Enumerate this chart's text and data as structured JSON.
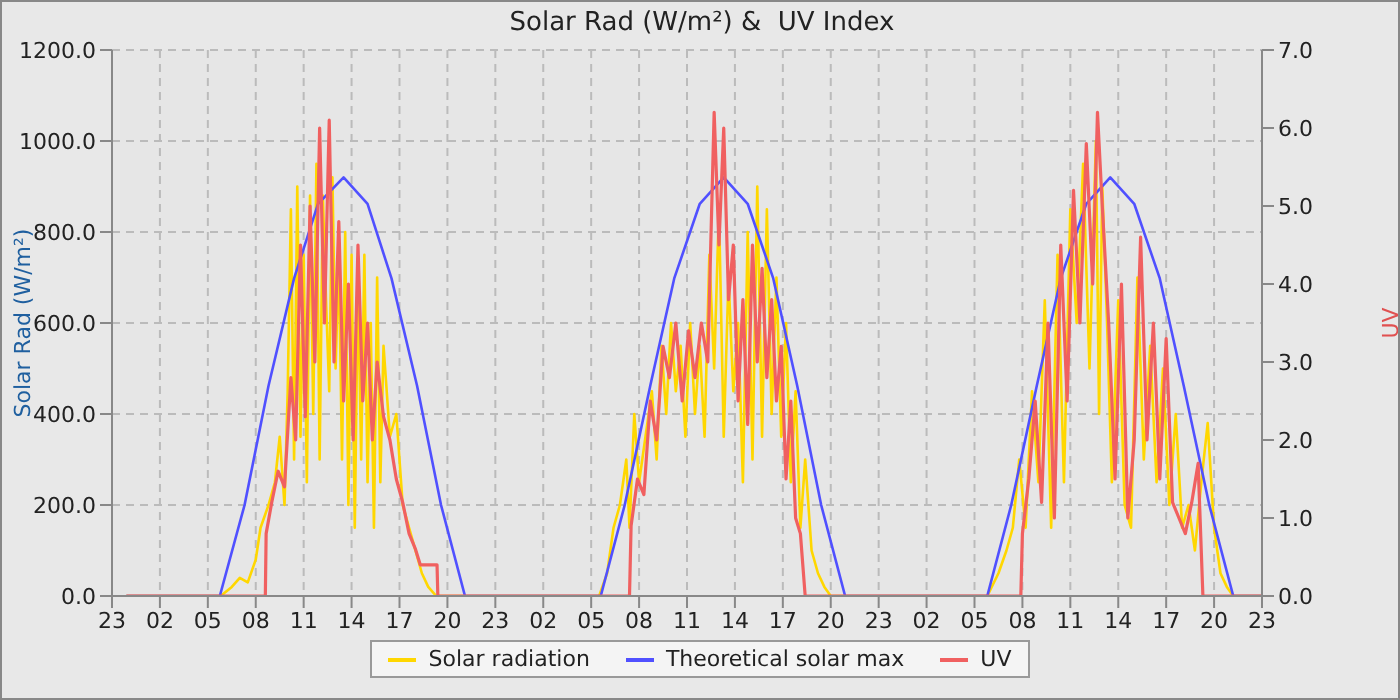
{
  "chart_data": {
    "type": "line",
    "title": "Solar Rad (W/m²) &  UV Index",
    "ylabel": "Solar Rad (W/m²)",
    "y2label": "UV",
    "xlim": [
      "--01-01T23:00",
      "--01-04T23:00"
    ],
    "xticks": [
      {
        "value": "--01-01T23:00",
        "label": "23"
      },
      {
        "value": "--01-02T02:00",
        "label": "02"
      },
      {
        "value": "--01-02T05:00",
        "label": "05"
      },
      {
        "value": "--01-02T08:00",
        "label": "08"
      },
      {
        "value": "--01-02T11:00",
        "label": "11"
      },
      {
        "value": "--01-02T14:00",
        "label": "14"
      },
      {
        "value": "--01-02T17:00",
        "label": "17"
      },
      {
        "value": "--01-02T20:00",
        "label": "20"
      },
      {
        "value": "--01-02T23:00",
        "label": "23"
      },
      {
        "value": "--01-03T02:00",
        "label": "02"
      },
      {
        "value": "--01-03T05:00",
        "label": "05"
      },
      {
        "value": "--01-03T08:00",
        "label": "08"
      },
      {
        "value": "--01-03T11:00",
        "label": "11"
      },
      {
        "value": "--01-03T14:00",
        "label": "14"
      },
      {
        "value": "--01-03T17:00",
        "label": "17"
      },
      {
        "value": "--01-03T20:00",
        "label": "20"
      },
      {
        "value": "--01-03T23:00",
        "label": "23"
      },
      {
        "value": "--01-04T02:00",
        "label": "02"
      },
      {
        "value": "--01-04T05:00",
        "label": "05"
      },
      {
        "value": "--01-04T08:00",
        "label": "08"
      },
      {
        "value": "--01-04T11:00",
        "label": "11"
      },
      {
        "value": "--01-04T14:00",
        "label": "14"
      },
      {
        "value": "--01-04T17:00",
        "label": "17"
      },
      {
        "value": "--01-04T20:00",
        "label": "20"
      },
      {
        "value": "--01-04T23:00",
        "label": "23"
      }
    ],
    "ylim": [
      0,
      1200
    ],
    "yticks": [
      {
        "value": 0,
        "label": "0.0"
      },
      {
        "value": 200,
        "label": "200.0"
      },
      {
        "value": 400,
        "label": "400.0"
      },
      {
        "value": 600,
        "label": "600.0"
      },
      {
        "value": 800,
        "label": "800.0"
      },
      {
        "value": 1000,
        "label": "1000.0"
      },
      {
        "value": 1200,
        "label": "1200.0"
      }
    ],
    "y2lim": [
      0,
      7
    ],
    "y2ticks": [
      {
        "value": 0,
        "label": "0.0"
      },
      {
        "value": 1,
        "label": "1.0"
      },
      {
        "value": 2,
        "label": "2.0"
      },
      {
        "value": 3,
        "label": "3.0"
      },
      {
        "value": 4,
        "label": "4.0"
      },
      {
        "value": 5,
        "label": "5.0"
      },
      {
        "value": 6,
        "label": "6.0"
      },
      {
        "value": 7,
        "label": "7.0"
      }
    ],
    "grid": true,
    "legend": "bottom",
    "marker": "none",
    "line_style": "solid",
    "series": [
      {
        "name": "Solar radiation",
        "color": "#ffd700",
        "x": [
          "--01-01T23:54",
          "--01-02T05:48",
          "--01-02T06:30",
          "--01-02T07:00",
          "--01-02T07:30",
          "--01-02T08:00",
          "--01-02T08:18",
          "--01-02T08:48",
          "--01-02T09:12",
          "--01-02T09:30",
          "--01-02T09:48",
          "--01-02T10:00",
          "--01-02T10:12",
          "--01-02T10:24",
          "--01-02T10:36",
          "--01-02T10:48",
          "--01-02T11:00",
          "--01-02T11:12",
          "--01-02T11:24",
          "--01-02T11:36",
          "--01-02T11:48",
          "--01-02T12:00",
          "--01-02T12:12",
          "--01-02T12:24",
          "--01-02T12:36",
          "--01-02T12:48",
          "--01-02T13:00",
          "--01-02T13:12",
          "--01-02T13:24",
          "--01-02T13:36",
          "--01-02T13:48",
          "--01-02T14:00",
          "--01-02T14:12",
          "--01-02T14:24",
          "--01-02T14:36",
          "--01-02T14:48",
          "--01-02T15:00",
          "--01-02T15:12",
          "--01-02T15:24",
          "--01-02T15:36",
          "--01-02T15:48",
          "--01-02T16:00",
          "--01-02T16:24",
          "--01-02T16:48",
          "--01-02T17:12",
          "--01-02T17:36",
          "--01-02T18:00",
          "--01-02T18:24",
          "--01-02T18:48",
          "--01-02T19:18",
          "--01-03T05:30",
          "--01-03T06:00",
          "--01-03T06:24",
          "--01-03T06:48",
          "--01-03T07:12",
          "--01-03T07:24",
          "--01-03T07:42",
          "--01-03T08:00",
          "--01-03T08:24",
          "--01-03T08:48",
          "--01-03T09:06",
          "--01-03T09:24",
          "--01-03T09:42",
          "--01-03T10:00",
          "--01-03T10:18",
          "--01-03T10:36",
          "--01-03T10:54",
          "--01-03T11:12",
          "--01-03T11:30",
          "--01-03T11:48",
          "--01-03T12:06",
          "--01-03T12:24",
          "--01-03T12:42",
          "--01-03T13:00",
          "--01-03T13:18",
          "--01-03T13:36",
          "--01-03T13:54",
          "--01-03T14:12",
          "--01-03T14:30",
          "--01-03T14:48",
          "--01-03T15:06",
          "--01-03T15:24",
          "--01-03T15:42",
          "--01-03T16:00",
          "--01-03T16:18",
          "--01-03T16:36",
          "--01-03T16:54",
          "--01-03T17:12",
          "--01-03T17:30",
          "--01-03T17:48",
          "--01-03T18:06",
          "--01-03T18:24",
          "--01-03T18:48",
          "--01-03T19:12",
          "--01-03T19:36",
          "--01-03T20:00",
          "--01-04T05:48",
          "--01-04T06:30",
          "--01-04T07:00",
          "--01-04T07:24",
          "--01-04T07:48",
          "--01-04T08:12",
          "--01-04T08:36",
          "--01-04T09:00",
          "--01-04T09:24",
          "--01-04T09:48",
          "--01-04T10:12",
          "--01-04T10:36",
          "--01-04T11:00",
          "--01-04T11:24",
          "--01-04T11:48",
          "--01-04T12:12",
          "--01-04T12:36",
          "--01-04T12:48",
          "--01-04T13:00",
          "--01-04T13:18",
          "--01-04T13:36",
          "--01-04T14:00",
          "--01-04T14:24",
          "--01-04T14:48",
          "--01-04T15:12",
          "--01-04T15:36",
          "--01-04T16:00",
          "--01-04T16:24",
          "--01-04T16:48",
          "--01-04T17:12",
          "--01-04T17:36",
          "--01-04T18:00",
          "--01-04T18:24",
          "--01-04T18:48",
          "--01-04T19:12",
          "--01-04T19:36",
          "--01-04T20:00",
          "--01-04T20:24",
          "--01-04T20:48",
          "--01-04T21:12",
          "--01-04T23:00"
        ],
        "values": [
          0,
          0,
          20,
          40,
          30,
          80,
          150,
          200,
          250,
          350,
          200,
          450,
          850,
          300,
          900,
          350,
          750,
          250,
          880,
          400,
          950,
          300,
          880,
          650,
          450,
          920,
          500,
          750,
          300,
          800,
          200,
          750,
          150,
          700,
          300,
          750,
          250,
          600,
          150,
          700,
          250,
          550,
          350,
          400,
          200,
          150,
          100,
          50,
          20,
          0,
          0,
          50,
          150,
          200,
          300,
          150,
          400,
          250,
          350,
          450,
          300,
          550,
          400,
          600,
          450,
          550,
          350,
          600,
          400,
          550,
          350,
          750,
          500,
          850,
          350,
          700,
          450,
          600,
          250,
          800,
          300,
          900,
          350,
          850,
          400,
          700,
          350,
          600,
          250,
          450,
          150,
          300,
          100,
          50,
          20,
          0,
          0,
          50,
          100,
          150,
          300,
          150,
          450,
          250,
          650,
          150,
          750,
          250,
          850,
          600,
          950,
          500,
          1000,
          400,
          900,
          600,
          250,
          650,
          200,
          150,
          700,
          300,
          550,
          250,
          500,
          200,
          400,
          150,
          200,
          100,
          250,
          380,
          150,
          50,
          20,
          0,
          0
        ]
      },
      {
        "name": "Theoretical solar max",
        "color": "#5050ff",
        "x": [
          "--01-01T23:54",
          "--01-02T05:45",
          "--01-02T07:18",
          "--01-02T08:48",
          "--01-02T10:24",
          "--01-02T11:54",
          "--01-02T13:30",
          "--01-02T15:00",
          "--01-02T16:30",
          "--01-02T18:06",
          "--01-02T19:36",
          "--01-02T21:06",
          "--01-03T05:36",
          "--01-03T07:06",
          "--01-03T08:42",
          "--01-03T10:12",
          "--01-03T11:48",
          "--01-03T13:18",
          "--01-03T14:48",
          "--01-03T16:24",
          "--01-03T17:54",
          "--01-03T19:24",
          "--01-03T20:54",
          "--01-04T05:48",
          "--01-04T07:18",
          "--01-04T08:54",
          "--01-04T10:24",
          "--01-04T12:00",
          "--01-04T13:30",
          "--01-04T15:00",
          "--01-04T16:36",
          "--01-04T18:06",
          "--01-04T19:42",
          "--01-04T21:12",
          "--01-04T23:00"
        ],
        "values": [
          0,
          0,
          200,
          462,
          698,
          862,
          920,
          862,
          698,
          462,
          200,
          0,
          0,
          200,
          462,
          698,
          862,
          920,
          862,
          698,
          462,
          200,
          0,
          0,
          200,
          462,
          698,
          862,
          920,
          862,
          698,
          462,
          200,
          0,
          0
        ]
      },
      {
        "name": "UV",
        "color": "#f06060",
        "axis": "y2",
        "x": [
          "--01-01T23:54",
          "--01-02T08:36",
          "--01-02T08:39",
          "--01-02T09:00",
          "--01-02T09:24",
          "--01-02T09:48",
          "--01-02T10:12",
          "--01-02T10:30",
          "--01-02T10:48",
          "--01-02T11:06",
          "--01-02T11:24",
          "--01-02T11:42",
          "--01-02T12:00",
          "--01-02T12:18",
          "--01-02T12:36",
          "--01-02T12:54",
          "--01-02T13:12",
          "--01-02T13:30",
          "--01-02T13:48",
          "--01-02T14:06",
          "--01-02T14:24",
          "--01-02T14:42",
          "--01-02T15:00",
          "--01-02T15:18",
          "--01-02T15:36",
          "--01-02T16:00",
          "--01-02T16:24",
          "--01-02T16:48",
          "--01-02T17:12",
          "--01-02T17:36",
          "--01-02T18:00",
          "--01-02T18:18",
          "--01-02T19:21",
          "--01-02T19:24",
          "--01-03T07:24",
          "--01-03T07:30",
          "--01-03T07:54",
          "--01-03T08:18",
          "--01-03T08:42",
          "--01-03T09:06",
          "--01-03T09:30",
          "--01-03T09:54",
          "--01-03T10:18",
          "--01-03T10:42",
          "--01-03T11:06",
          "--01-03T11:30",
          "--01-03T11:54",
          "--01-03T12:18",
          "--01-03T12:42",
          "--01-03T13:00",
          "--01-03T13:18",
          "--01-03T13:36",
          "--01-03T13:54",
          "--01-03T14:12",
          "--01-03T14:30",
          "--01-03T14:48",
          "--01-03T15:06",
          "--01-03T15:24",
          "--01-03T15:42",
          "--01-03T16:00",
          "--01-03T16:18",
          "--01-03T16:36",
          "--01-03T16:54",
          "--01-03T17:12",
          "--01-03T17:30",
          "--01-03T17:48",
          "--01-03T18:06",
          "--01-03T18:24",
          "--01-04T07:54",
          "--01-04T08:00",
          "--01-04T08:24",
          "--01-04T08:48",
          "--01-04T09:12",
          "--01-04T09:36",
          "--01-04T10:00",
          "--01-04T10:24",
          "--01-04T10:48",
          "--01-04T11:12",
          "--01-04T11:36",
          "--01-04T12:00",
          "--01-04T12:24",
          "--01-04T12:42",
          "--01-04T13:00",
          "--01-04T13:24",
          "--01-04T13:48",
          "--01-04T14:12",
          "--01-04T14:36",
          "--01-04T15:00",
          "--01-04T15:24",
          "--01-04T15:48",
          "--01-04T16:12",
          "--01-04T16:36",
          "--01-04T17:00",
          "--01-04T17:24",
          "--01-04T17:48",
          "--01-04T18:12",
          "--01-04T18:36",
          "--01-04T19:00",
          "--01-04T19:18",
          "--01-04T23:00"
        ],
        "values": [
          0,
          0,
          0.8,
          1.2,
          1.6,
          1.4,
          2.8,
          2.0,
          4.5,
          2.3,
          5.0,
          3.0,
          6.0,
          3.5,
          6.1,
          3.0,
          4.8,
          2.5,
          4.0,
          2.0,
          4.5,
          2.5,
          3.5,
          2.0,
          3.0,
          2.3,
          2.0,
          1.5,
          1.2,
          0.8,
          0.6,
          0.4,
          0.4,
          0,
          0,
          0.9,
          1.5,
          1.3,
          2.5,
          2.0,
          3.2,
          2.8,
          3.5,
          2.5,
          3.4,
          2.8,
          3.5,
          3.0,
          6.2,
          4.5,
          6.0,
          3.8,
          4.5,
          2.5,
          3.8,
          2.2,
          4.5,
          3.0,
          4.2,
          2.8,
          3.8,
          2.5,
          3.2,
          1.5,
          2.5,
          1.0,
          0.8,
          0,
          0,
          0.8,
          1.5,
          2.5,
          1.2,
          3.5,
          1.0,
          4.5,
          2.5,
          5.2,
          3.5,
          5.8,
          4.0,
          6.2,
          5.0,
          3.5,
          1.5,
          4.0,
          1.0,
          2.0,
          4.6,
          2.0,
          3.5,
          1.5,
          3.3,
          1.2,
          1.0,
          0.8,
          1.2,
          1.7,
          0,
          0
        ]
      }
    ]
  }
}
